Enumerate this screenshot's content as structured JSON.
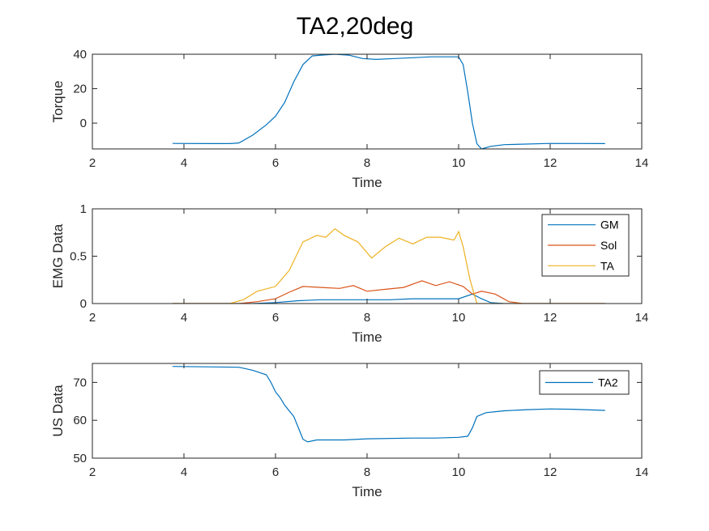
{
  "figure": {
    "title": "TA2,20deg"
  },
  "chart_data": [
    {
      "type": "line",
      "xlabel": "Time",
      "ylabel": "Torque",
      "xlim": [
        2,
        14
      ],
      "ylim": [
        -15,
        40
      ],
      "xticks": [
        2,
        4,
        6,
        8,
        10,
        12,
        14
      ],
      "yticks": [
        0,
        20,
        40
      ],
      "legend": null,
      "series": [
        {
          "color": "#0072BD",
          "points": [
            [
              3.75,
              -11.8
            ],
            [
              4.5,
              -11.9
            ],
            [
              5.0,
              -11.9
            ],
            [
              5.2,
              -11.5
            ],
            [
              5.5,
              -7
            ],
            [
              5.8,
              -1
            ],
            [
              6.0,
              4
            ],
            [
              6.2,
              12
            ],
            [
              6.4,
              24
            ],
            [
              6.6,
              34
            ],
            [
              6.8,
              39
            ],
            [
              7.0,
              39.5
            ],
            [
              7.3,
              40
            ],
            [
              7.6,
              39.5
            ],
            [
              7.9,
              37.5
            ],
            [
              8.2,
              37
            ],
            [
              8.6,
              37.5
            ],
            [
              9.0,
              38
            ],
            [
              9.4,
              38.5
            ],
            [
              9.8,
              38.5
            ],
            [
              10.0,
              38.5
            ],
            [
              10.1,
              34
            ],
            [
              10.2,
              18
            ],
            [
              10.3,
              0
            ],
            [
              10.4,
              -12
            ],
            [
              10.5,
              -15
            ],
            [
              10.7,
              -13.5
            ],
            [
              11.0,
              -12.5
            ],
            [
              12.0,
              -11.8
            ],
            [
              13.2,
              -11.9
            ]
          ]
        }
      ]
    },
    {
      "type": "line",
      "xlabel": "Time",
      "ylabel": "EMG Data",
      "xlim": [
        2,
        14
      ],
      "ylim": [
        0,
        1
      ],
      "xticks": [
        2,
        4,
        6,
        8,
        10,
        12,
        14
      ],
      "yticks": [
        "0",
        "0.5",
        "1"
      ],
      "legend": "top-right",
      "series": [
        {
          "name": "GM",
          "color": "#0072BD",
          "points": [
            [
              3.75,
              0
            ],
            [
              5.5,
              0
            ],
            [
              6.0,
              0.01
            ],
            [
              6.5,
              0.03
            ],
            [
              7.0,
              0.04
            ],
            [
              7.5,
              0.04
            ],
            [
              8.0,
              0.04
            ],
            [
              8.5,
              0.04
            ],
            [
              9.0,
              0.05
            ],
            [
              9.5,
              0.05
            ],
            [
              10.0,
              0.05
            ],
            [
              10.3,
              0.1
            ],
            [
              10.5,
              0.05
            ],
            [
              10.7,
              0.01
            ],
            [
              11.0,
              0
            ],
            [
              13.2,
              0
            ]
          ]
        },
        {
          "name": "Sol",
          "color": "#D95319",
          "points": [
            [
              3.75,
              0
            ],
            [
              5.2,
              0
            ],
            [
              5.6,
              0.02
            ],
            [
              6.0,
              0.05
            ],
            [
              6.3,
              0.12
            ],
            [
              6.6,
              0.18
            ],
            [
              7.0,
              0.17
            ],
            [
              7.4,
              0.16
            ],
            [
              7.7,
              0.19
            ],
            [
              8.0,
              0.13
            ],
            [
              8.4,
              0.15
            ],
            [
              8.8,
              0.17
            ],
            [
              9.2,
              0.24
            ],
            [
              9.5,
              0.19
            ],
            [
              9.8,
              0.23
            ],
            [
              10.1,
              0.18
            ],
            [
              10.3,
              0.1
            ],
            [
              10.5,
              0.13
            ],
            [
              10.8,
              0.1
            ],
            [
              11.1,
              0.02
            ],
            [
              11.4,
              0
            ],
            [
              13.2,
              0
            ]
          ]
        },
        {
          "name": "TA",
          "color": "#EDB120",
          "points": [
            [
              3.75,
              0
            ],
            [
              5.0,
              0
            ],
            [
              5.3,
              0.04
            ],
            [
              5.6,
              0.13
            ],
            [
              6.0,
              0.18
            ],
            [
              6.3,
              0.35
            ],
            [
              6.6,
              0.65
            ],
            [
              6.9,
              0.72
            ],
            [
              7.1,
              0.7
            ],
            [
              7.3,
              0.79
            ],
            [
              7.5,
              0.72
            ],
            [
              7.8,
              0.65
            ],
            [
              8.1,
              0.48
            ],
            [
              8.4,
              0.6
            ],
            [
              8.7,
              0.69
            ],
            [
              9.0,
              0.63
            ],
            [
              9.3,
              0.7
            ],
            [
              9.6,
              0.7
            ],
            [
              9.9,
              0.67
            ],
            [
              10.0,
              0.76
            ],
            [
              10.1,
              0.6
            ],
            [
              10.25,
              0.25
            ],
            [
              10.4,
              0
            ],
            [
              13.2,
              0
            ]
          ]
        }
      ]
    },
    {
      "type": "line",
      "xlabel": "Time",
      "ylabel": "US Data",
      "xlim": [
        2,
        14
      ],
      "ylim": [
        50,
        75
      ],
      "xticks": [
        2,
        4,
        6,
        8,
        10,
        12,
        14
      ],
      "yticks": [
        50,
        60,
        70
      ],
      "legend": "top-right",
      "series": [
        {
          "name": "TA2",
          "color": "#0072BD",
          "points": [
            [
              3.75,
              74.2
            ],
            [
              4.5,
              74.1
            ],
            [
              5.2,
              74
            ],
            [
              5.5,
              73.2
            ],
            [
              5.8,
              72
            ],
            [
              5.9,
              70
            ],
            [
              6.0,
              67.5
            ],
            [
              6.1,
              66
            ],
            [
              6.2,
              64
            ],
            [
              6.3,
              62.5
            ],
            [
              6.4,
              61
            ],
            [
              6.5,
              58
            ],
            [
              6.6,
              55
            ],
            [
              6.7,
              54.3
            ],
            [
              6.9,
              54.8
            ],
            [
              7.5,
              54.8
            ],
            [
              8.0,
              55.1
            ],
            [
              9.0,
              55.3
            ],
            [
              9.5,
              55.3
            ],
            [
              10.0,
              55.5
            ],
            [
              10.2,
              55.8
            ],
            [
              10.3,
              58
            ],
            [
              10.4,
              61
            ],
            [
              10.6,
              62
            ],
            [
              11.0,
              62.5
            ],
            [
              11.5,
              62.8
            ],
            [
              12.0,
              63
            ],
            [
              12.5,
              62.9
            ],
            [
              13.2,
              62.6
            ]
          ]
        }
      ]
    }
  ]
}
